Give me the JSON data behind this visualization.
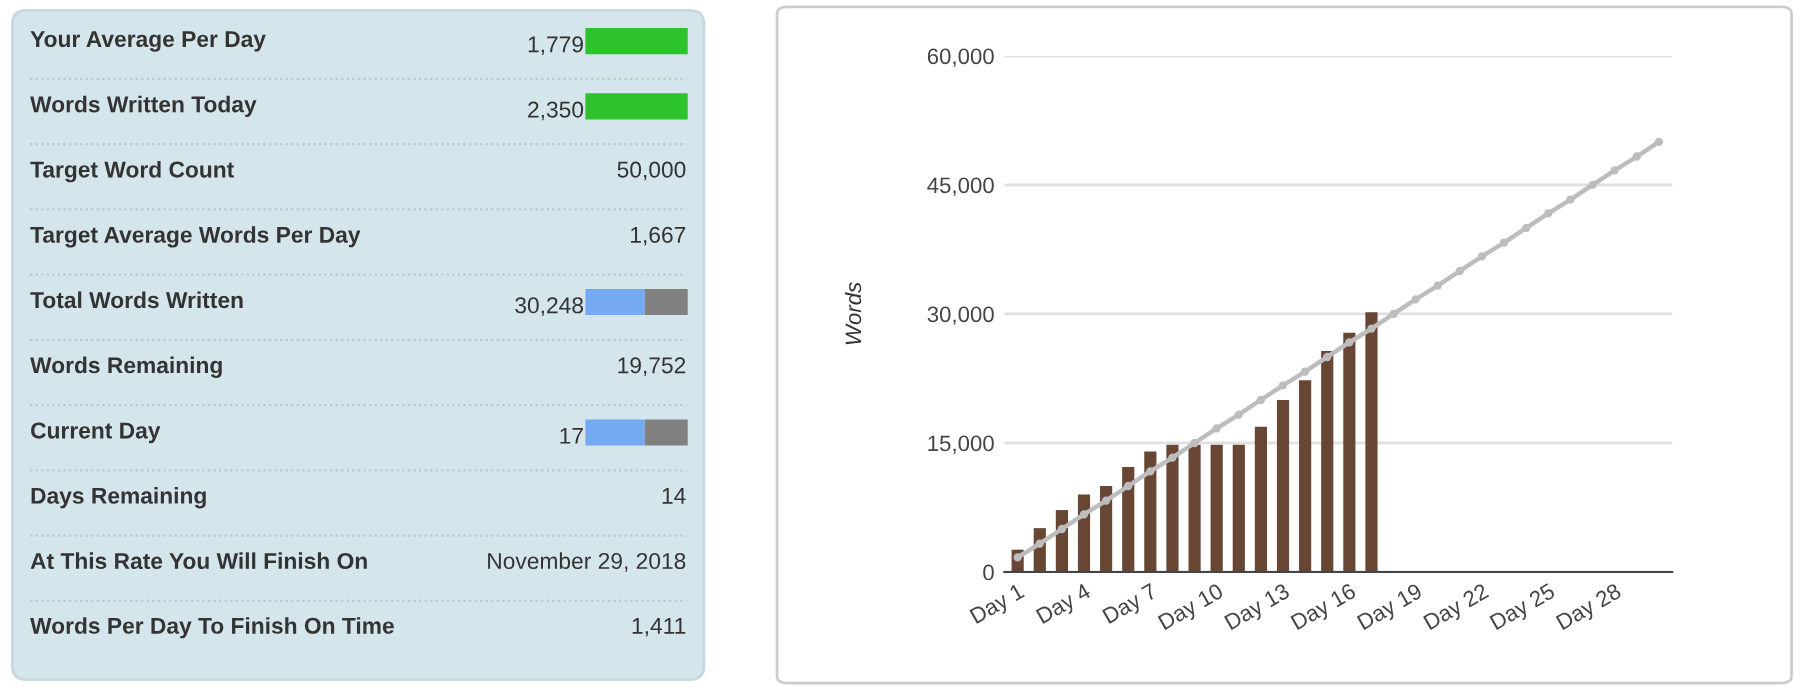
{
  "chart_data": [
    {
      "type": "other",
      "categories": [
        "Your Average Per Day",
        "Words Written Today",
        "Target Word Count",
        "Target Average Words Per Day",
        "Total Words Written",
        "Words Remaining",
        "Current Day",
        "Days Remaining",
        "At This Rate You Will Finish On",
        "Words Per Day To Finish On Time"
      ],
      "value_labels": [
        "1,779",
        "2,350",
        "50,000",
        "1,667",
        "30,248",
        "19,752",
        "17",
        "14",
        "November 29, 2018",
        "1,411"
      ]
    },
    {
      "type": "bar",
      "categories": [
        "Day 1",
        null,
        null,
        "Day 4",
        null,
        null,
        "Day 7",
        null,
        null,
        "Day 10",
        null,
        null,
        "Day 13",
        null,
        null,
        "Day 16",
        null,
        null,
        "Day 19",
        null,
        null,
        "Day 22",
        null,
        null,
        "Day 25",
        null,
        null,
        "Day 28",
        null,
        null
      ],
      "ylabel": "Words",
      "series": [
        {
          "type": "bar",
          "color": "#684634",
          "values": [
            2600,
            5100,
            7200,
            9000,
            10000,
            12200,
            14000,
            14800,
            14800,
            14800,
            14800,
            16900,
            20000,
            22300,
            25700,
            27800,
            30200,
            0,
            0,
            0,
            0,
            0,
            0,
            0,
            0,
            0,
            0,
            0,
            0,
            0
          ]
        },
        {
          "type": "line",
          "color": "#bdbdbd",
          "marker": "circle",
          "values": [
            1700,
            3300,
            5000,
            6700,
            8300,
            10000,
            11700,
            13300,
            15000,
            16700,
            18300,
            20000,
            21700,
            23300,
            25000,
            26700,
            28300,
            30000,
            31700,
            33300,
            35000,
            36700,
            38300,
            40000,
            41700,
            43300,
            45000,
            46700,
            48300,
            50000
          ]
        }
      ],
      "ylim": [
        0,
        60000
      ],
      "yticks": [
        0,
        {
          "value": 15000,
          "label": "15,000"
        },
        {
          "value": 30000,
          "label": "30,000"
        },
        {
          "value": 45000,
          "label": "45,000"
        },
        {
          "value": 60000,
          "label": "60,000"
        }
      ],
      "grid": "y",
      "legend": false
    }
  ]
}
